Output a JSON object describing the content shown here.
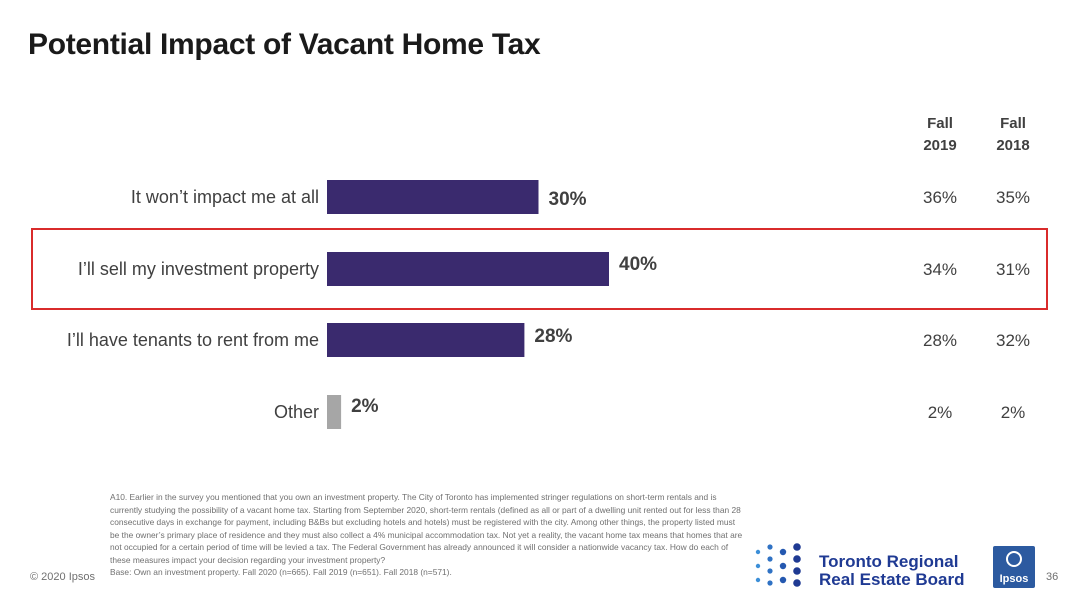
{
  "title": "Potential Impact of Vacant Home Tax",
  "columns": [
    {
      "line1": "Fall",
      "line2": "2019"
    },
    {
      "line1": "Fall",
      "line2": "2018"
    }
  ],
  "chart_data": {
    "type": "bar",
    "orientation": "horizontal",
    "categories": [
      "It won’t impact me at all",
      "I’ll sell my investment property",
      "I’ll have tenants to rent from me",
      "Other"
    ],
    "values": [
      30,
      40,
      28,
      2
    ],
    "data_labels": [
      "30%",
      "40%",
      "28%",
      "2%"
    ],
    "unit": "%",
    "bar_colors": [
      "#3a2a6e",
      "#3a2a6e",
      "#3a2a6e",
      "#a6a6a6"
    ],
    "xlim": [
      0,
      100
    ],
    "highlighted_category": "I’ll sell my investment property",
    "comparison": {
      "fall_2019": [
        "36%",
        "34%",
        "28%",
        "2%"
      ],
      "fall_2018": [
        "35%",
        "31%",
        "32%",
        "2%"
      ]
    }
  },
  "footnote": {
    "question": "A10. Earlier in the survey you mentioned that you own an investment property. The City of Toronto has implemented stringer regulations on short-term rentals and is currently studying the possibility of a vacant home tax. Starting from September 2020, short-term rentals (defined as all or part of a dwelling unit rented out for less than 28 consecutive days in exchange for payment, including B&Bs but excluding hotels and hotels) must be registered with the city. Among other things, the property listed must be the owner’s primary place of residence and they must also collect a 4% municipal accommodation tax. Not yet a reality, the vacant home tax means that homes that are not occupied for a certain period of time will be levied a tax. The Federal Government has already announced it will consider a nationwide vacancy tax. How do each of these measures impact your decision regarding your investment property?",
    "base": "Base: Own an investment property. Fall 2020 (n=665). Fall 2019 (n=651). Fall 2018 (n=571)."
  },
  "copyright": "© 2020 Ipsos",
  "page_number": "36",
  "logos": {
    "trreb_line1": "Toronto Regional",
    "trreb_line2": "Real Estate Board",
    "ipsos": "Ipsos"
  },
  "colors": {
    "bar": "#3a2a6e",
    "other_bar": "#a6a6a6",
    "highlight": "#d92b2b",
    "trreb_blue": "#1f3a93"
  }
}
